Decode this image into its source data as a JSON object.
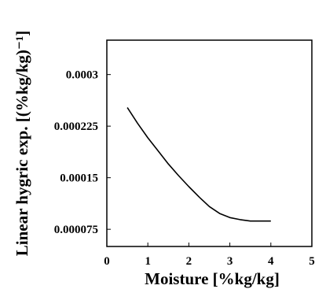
{
  "chart_data": {
    "type": "line",
    "xlabel": "Moisture [%kg/kg]",
    "ylabel": "Linear hygric exp. [(%kg/kg)⁻¹]",
    "xlim": [
      0,
      5
    ],
    "ylim": [
      5e-05,
      0.00035
    ],
    "xticks": [
      0,
      1,
      2,
      3,
      4,
      5
    ],
    "xtick_labels": [
      "0",
      "1",
      "2",
      "3",
      "4",
      "5"
    ],
    "yticks": [
      7.5e-05,
      0.00015,
      0.000225,
      0.0003
    ],
    "ytick_labels": [
      "0.000075",
      "0.00015",
      "0.000225",
      "0.0003"
    ],
    "grid": false,
    "series": [
      {
        "x": [
          0.5,
          0.75,
          1.0,
          1.25,
          1.5,
          1.75,
          2.0,
          2.25,
          2.5,
          2.75,
          3.0,
          3.25,
          3.5,
          3.75,
          4.0
        ],
        "y": [
          0.000252,
          0.000229,
          0.000208,
          0.000189,
          0.00017,
          0.000153,
          0.000137,
          0.000122,
          0.000108,
          9.8e-05,
          9.2e-05,
          8.9e-05,
          8.7e-05,
          8.7e-05,
          8.7e-05
        ]
      }
    ]
  }
}
